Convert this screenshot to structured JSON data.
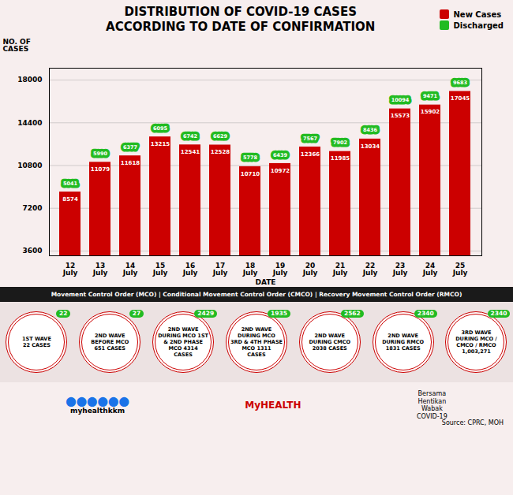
{
  "chart_data": {
    "type": "bar",
    "title": "DISTRIBUTION OF COVID-19 CASES",
    "subtitle": "ACCORDING TO DATE OF CONFIRMATION",
    "xlabel": "DATE",
    "ylabel": "NO. OF\nCASES",
    "categories": [
      "12\nJuly",
      "13\nJuly",
      "14\nJuly",
      "15\nJuly",
      "16\nJuly",
      "17\nJuly",
      "18\nJuly",
      "19\nJuly",
      "20\nJuly",
      "21\nJuly",
      "22\nJuly",
      "23\nJuly",
      "24\nJuly",
      "25\nJuly"
    ],
    "series": [
      {
        "name": "New Cases",
        "color": "#cc0000",
        "values": [
          8574,
          11079,
          11618,
          13215,
          12541,
          12528,
          10710,
          10972,
          12366,
          11985,
          13034,
          15573,
          15902,
          17045
        ]
      },
      {
        "name": "Discharged",
        "color": "#22bb22",
        "values": [
          5041,
          5990,
          6377,
          6095,
          6742,
          6629,
          5778,
          6439,
          7567,
          7902,
          8436,
          10094,
          9471,
          9683
        ]
      }
    ],
    "ylim": [
      3200,
      19000
    ],
    "yticks": [
      3600,
      7200,
      10800,
      14400,
      18000
    ],
    "grid": true,
    "legend": "top-right",
    "data_labels": true,
    "annotations": {
      "banner": "Movement Control Order (MCO)  |  Conditional Movement Control Order (CMCO)  |  Recovery Movement Control Order (RMCO)",
      "waves": [
        {
          "label": "1ST WAVE\n22 CASES",
          "badge": "22"
        },
        {
          "label": "2ND WAVE\nBEFORE MCO\n651 CASES",
          "badge": "27"
        },
        {
          "label": "2ND WAVE\nDURING MCO 1ST\n& 2ND PHASE\nMCO 4314\nCASES",
          "badge": "2429"
        },
        {
          "label": "2ND WAVE\nDURING MCO\n3RD & 4TH PHASE\nMCO 1311\nCASES",
          "badge": "1935"
        },
        {
          "label": "2ND WAVE\nDURING CMCO\n2038 CASES",
          "badge": "2562"
        },
        {
          "label": "2ND WAVE\nDURING RMCO\n1831 CASES",
          "badge": "2340"
        },
        {
          "label": "3RD WAVE\nDURING MCO /\nCMCO / RMCO\n1,003,271",
          "badge": "2340"
        }
      ],
      "icons": "⬤⬤⬤⬤⬤⬤",
      "handle": "myhealthkkm",
      "brand": "MyHEALTH",
      "motto": "Bersama\nHentikan\nWabak\nCOVID-19",
      "source": "Source: CPRC, MOH"
    }
  }
}
